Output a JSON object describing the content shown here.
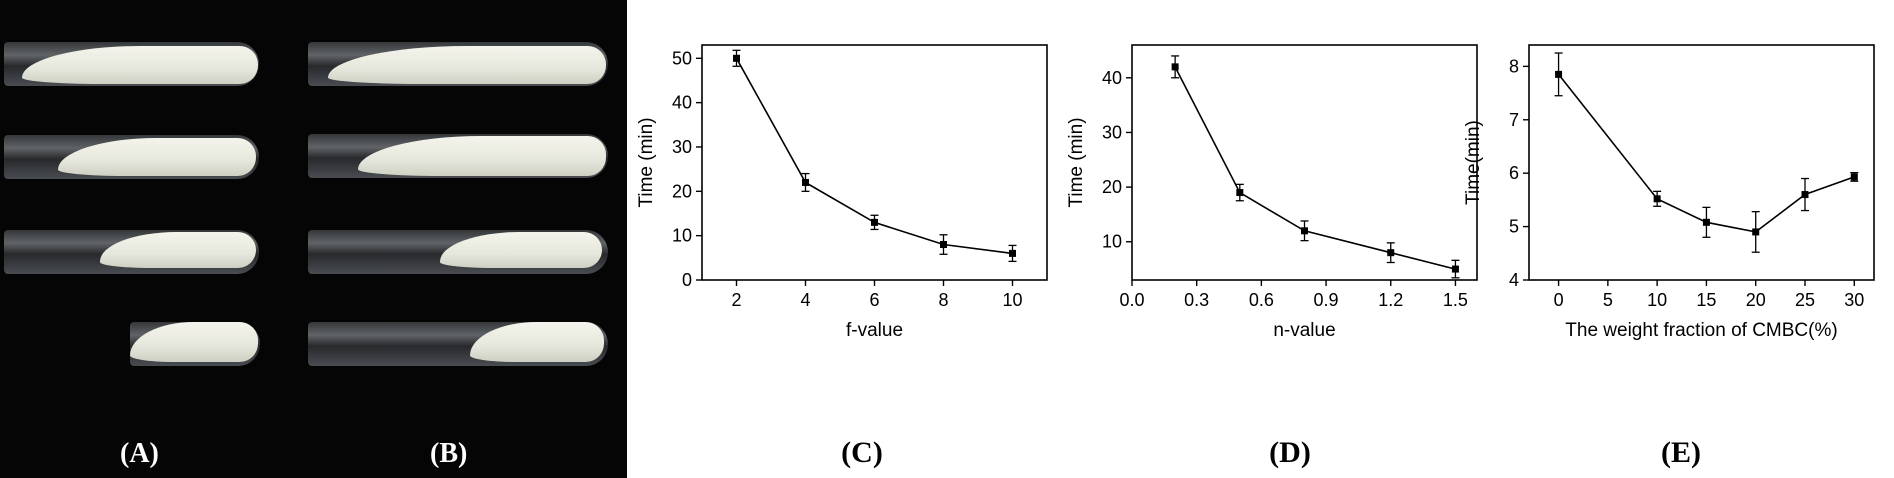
{
  "panel_labels": {
    "a": "(A)",
    "b": "(B)",
    "c": "(C)",
    "d": "(D)",
    "e": "(E)"
  },
  "chart_data": [
    {
      "type": "line",
      "xlabel": "f-value",
      "ylabel": "Time (min)",
      "xlim": [
        1,
        11
      ],
      "ylim": [
        0,
        53
      ],
      "xticks": [
        2,
        4,
        6,
        8,
        10
      ],
      "xtick_labels": [
        "2",
        "4",
        "6",
        "8",
        "10"
      ],
      "yticks": [
        0,
        10,
        20,
        30,
        40,
        50
      ],
      "ytick_labels": [
        "0",
        "10",
        "20",
        "30",
        "40",
        "50"
      ],
      "x": [
        2,
        4,
        6,
        8,
        10
      ],
      "y": [
        50,
        22,
        13,
        8,
        6
      ],
      "yerr": [
        1.8,
        2.0,
        1.6,
        2.2,
        1.8
      ]
    },
    {
      "type": "line",
      "xlabel": "n-value",
      "ylabel": "Time (min)",
      "xlim": [
        0,
        1.6
      ],
      "ylim": [
        3,
        46
      ],
      "xticks": [
        0.0,
        0.3,
        0.6,
        0.9,
        1.2,
        1.5
      ],
      "xtick_labels": [
        "0.0",
        "0.3",
        "0.6",
        "0.9",
        "1.2",
        "1.5"
      ],
      "yticks": [
        10,
        20,
        30,
        40
      ],
      "ytick_labels": [
        "10",
        "20",
        "30",
        "40"
      ],
      "x": [
        0.2,
        0.5,
        0.8,
        1.2,
        1.5
      ],
      "y": [
        42,
        19,
        12,
        8,
        5
      ],
      "yerr": [
        2.0,
        1.5,
        1.8,
        1.8,
        1.6
      ]
    },
    {
      "type": "line",
      "xlabel": "The weight fraction of CMBC(%)",
      "ylabel": "Time(min)",
      "xlim": [
        -3,
        32
      ],
      "ylim": [
        4,
        8.4
      ],
      "xticks": [
        0,
        5,
        10,
        15,
        20,
        25,
        30
      ],
      "xtick_labels": [
        "0",
        "5",
        "10",
        "15",
        "20",
        "25",
        "30"
      ],
      "yticks": [
        4,
        5,
        6,
        7,
        8
      ],
      "ytick_labels": [
        "4",
        "5",
        "6",
        "7",
        "8"
      ],
      "x": [
        0,
        10,
        15,
        20,
        25,
        30
      ],
      "y": [
        7.85,
        5.52,
        5.08,
        4.9,
        5.6,
        5.93
      ],
      "yerr": [
        0.4,
        0.14,
        0.28,
        0.38,
        0.3,
        0.08
      ]
    }
  ]
}
